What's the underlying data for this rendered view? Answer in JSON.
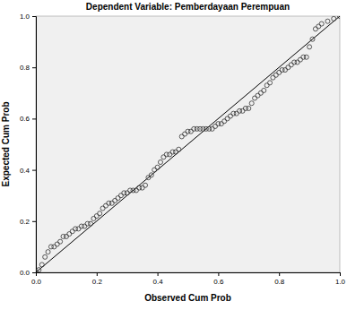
{
  "chart_data": {
    "type": "scatter",
    "title": "Dependent Variable: Pemberdayaan Perempuan",
    "x_label": "Observed Cum Prob",
    "y_label": "Expected Cum Prob",
    "marker": "circle",
    "color": "#333333",
    "xlim": [
      0,
      1
    ],
    "ylim": [
      0,
      1
    ],
    "xticks": [
      {
        "value": 0,
        "label": "0.0"
      },
      {
        "value": 0.2,
        "label": "0.2"
      },
      {
        "value": 0.4,
        "label": "0.4"
      },
      {
        "value": 0.6,
        "label": "0.6"
      },
      {
        "value": 0.8,
        "label": "0.8"
      },
      {
        "value": 1,
        "label": "1.0"
      }
    ],
    "yticks": [
      {
        "value": 0,
        "label": "0.0"
      },
      {
        "value": 0.2,
        "label": "0.2"
      },
      {
        "value": 0.4,
        "label": "0.4"
      },
      {
        "value": 0.6,
        "label": "0.6"
      },
      {
        "value": 0.8,
        "label": "0.8"
      },
      {
        "value": 1,
        "label": "1.0"
      }
    ],
    "reference_line": {
      "x": [
        0,
        1
      ],
      "y": [
        0,
        1
      ]
    },
    "x": [
      0.0,
      0.01,
      0.02,
      0.03,
      0.04,
      0.05,
      0.06,
      0.07,
      0.08,
      0.09,
      0.1,
      0.11,
      0.12,
      0.13,
      0.14,
      0.15,
      0.16,
      0.17,
      0.18,
      0.19,
      0.2,
      0.21,
      0.22,
      0.23,
      0.24,
      0.25,
      0.26,
      0.27,
      0.28,
      0.29,
      0.3,
      0.31,
      0.32,
      0.33,
      0.34,
      0.35,
      0.36,
      0.37,
      0.38,
      0.39,
      0.4,
      0.41,
      0.42,
      0.43,
      0.44,
      0.45,
      0.46,
      0.47,
      0.48,
      0.49,
      0.5,
      0.51,
      0.52,
      0.53,
      0.54,
      0.55,
      0.56,
      0.57,
      0.58,
      0.59,
      0.6,
      0.61,
      0.62,
      0.63,
      0.64,
      0.65,
      0.66,
      0.67,
      0.68,
      0.69,
      0.7,
      0.71,
      0.72,
      0.73,
      0.74,
      0.75,
      0.76,
      0.77,
      0.78,
      0.79,
      0.8,
      0.81,
      0.82,
      0.83,
      0.84,
      0.85,
      0.86,
      0.87,
      0.88,
      0.89,
      0.9,
      0.91,
      0.92,
      0.93,
      0.94,
      0.96,
      0.98,
      1.0
    ],
    "values": [
      0.0,
      0.01,
      0.03,
      0.06,
      0.08,
      0.1,
      0.1,
      0.11,
      0.12,
      0.14,
      0.14,
      0.15,
      0.16,
      0.17,
      0.17,
      0.18,
      0.18,
      0.19,
      0.19,
      0.21,
      0.22,
      0.23,
      0.25,
      0.26,
      0.27,
      0.27,
      0.28,
      0.29,
      0.3,
      0.31,
      0.31,
      0.32,
      0.32,
      0.32,
      0.33,
      0.33,
      0.34,
      0.37,
      0.38,
      0.4,
      0.41,
      0.43,
      0.45,
      0.46,
      0.46,
      0.47,
      0.47,
      0.48,
      0.53,
      0.54,
      0.55,
      0.55,
      0.56,
      0.56,
      0.56,
      0.56,
      0.56,
      0.56,
      0.56,
      0.57,
      0.58,
      0.58,
      0.59,
      0.6,
      0.61,
      0.62,
      0.62,
      0.63,
      0.63,
      0.64,
      0.64,
      0.66,
      0.68,
      0.69,
      0.7,
      0.71,
      0.73,
      0.74,
      0.76,
      0.77,
      0.78,
      0.79,
      0.79,
      0.8,
      0.81,
      0.82,
      0.82,
      0.83,
      0.84,
      0.84,
      0.88,
      0.91,
      0.95,
      0.96,
      0.97,
      0.98,
      0.99,
      1.0
    ]
  }
}
